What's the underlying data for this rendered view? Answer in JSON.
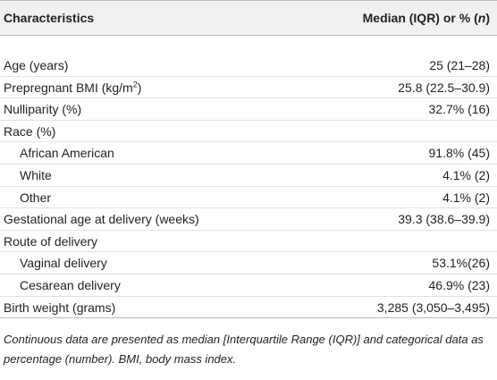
{
  "table": {
    "header": [
      "Characteristics",
      {
        "text": "Median (IQR) or % (",
        "italic": "n",
        "after": ")"
      }
    ],
    "rows": [
      {
        "label": "Age (years)",
        "value": "25 (21–28)"
      },
      {
        "label": {
          "text": "Prepregnant BMI (kg/m",
          "sup": "2",
          "after": ")"
        },
        "value": "25.8 (22.5–30.9)"
      },
      {
        "label": "Nulliparity (%)",
        "value": "32.7% (16)"
      },
      {
        "label": "Race (%)",
        "items": [
          {
            "label": "African American",
            "value": "91.8% (45)"
          },
          {
            "label": "White",
            "value": "4.1% (2)"
          },
          {
            "label": "Other",
            "value": "4.1% (2)"
          }
        ]
      },
      {
        "label": "Gestational age at delivery (weeks)",
        "value": "39.3 (38.6–39.9)"
      },
      {
        "label": "Route of delivery",
        "items": [
          {
            "label": "Vaginal delivery",
            "value": "53.1%(26)"
          },
          {
            "label": "Cesarean delivery",
            "value": "46.9% (23)"
          }
        ]
      },
      {
        "label": "Birth weight (grams)",
        "value": "3,285 (3,050–3,495)"
      }
    ],
    "footnote": "Continuous data are presented as median [Interquartile Range (IQR)] and categorical data as percentage (number). BMI, body mass index."
  }
}
